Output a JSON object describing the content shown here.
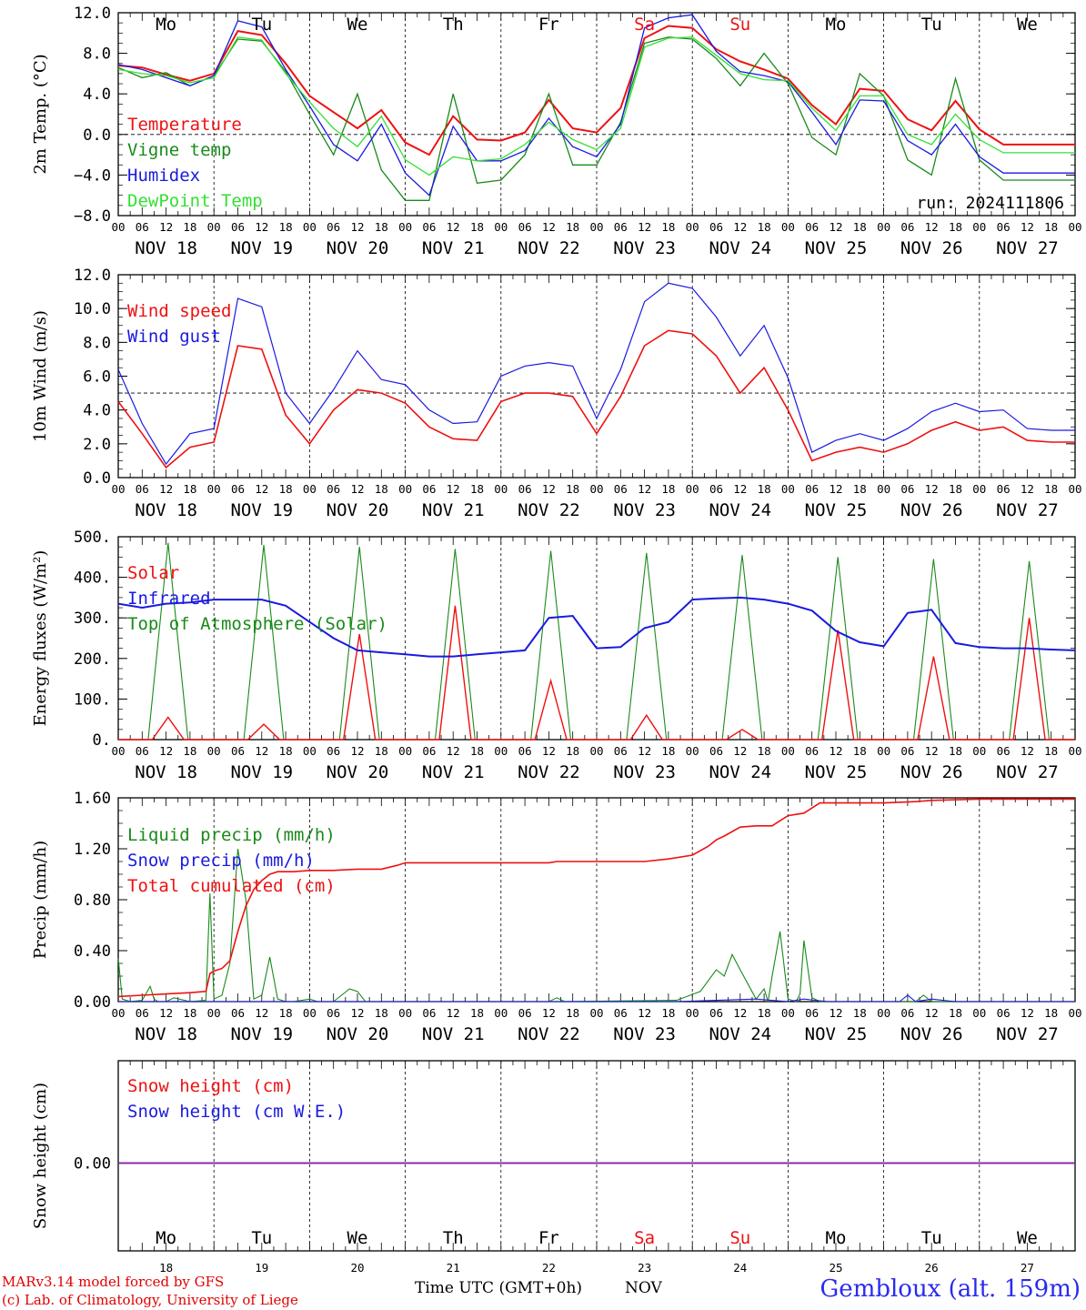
{
  "days": [
    "18",
    "19",
    "20",
    "21",
    "22",
    "23",
    "24",
    "25",
    "26",
    "27"
  ],
  "day_names": [
    "Mo",
    "Tu",
    "We",
    "Th",
    "Fr",
    "Sa",
    "Su",
    "Mo",
    "Tu",
    "We"
  ],
  "weekend_days": [
    5,
    6
  ],
  "date_labels": [
    "NOV 18",
    "NOV 19",
    "NOV 20",
    "NOV 21",
    "NOV 22",
    "NOV 23",
    "NOV 24",
    "NOV 25",
    "NOV 26",
    "NOV 27"
  ],
  "hour_ticks": [
    "00",
    "06",
    "12",
    "18"
  ],
  "hour_ticks_end": "00",
  "colors": {
    "red": "#ee1111",
    "green": "#1a8a1a",
    "blue": "#1a1ae0",
    "light_green": "#33e033",
    "purple": "#8822aa"
  },
  "footer": {
    "credit_1": "MARv3.14 model forced by GFS",
    "credit_2": "(c) Lab. of Climatology, University of Liege",
    "time_label": "Time UTC (GMT+0h)",
    "month": "NOV",
    "station": "Gembloux (alt. 159m)"
  },
  "chart_data": [
    {
      "type": "line",
      "ylabel": "2m Temp. (°C)",
      "ylim": [
        -8,
        12
      ],
      "yticks": [
        "12.0",
        "8.0",
        "4.0",
        "0.0",
        "−4.0",
        "−8.0"
      ],
      "ytick_values": [
        12,
        8,
        4,
        0,
        -4,
        -8
      ],
      "reference_line": 0,
      "annotation": "run: 2024111806",
      "x_unit": "hours since NOV 18 00 UTC",
      "series": [
        {
          "name": "Temperature",
          "color": "#ee1111",
          "width": 2,
          "x": [
            0,
            6,
            12,
            18,
            24,
            30,
            36,
            42,
            48,
            54,
            60,
            66,
            72,
            78,
            84,
            90,
            96,
            102,
            108,
            114,
            120,
            126,
            132,
            138,
            144,
            150,
            156,
            162,
            168,
            174,
            180,
            186,
            192,
            198,
            204,
            210,
            216,
            222,
            228,
            234,
            240
          ],
          "y": [
            6.8,
            6.6,
            5.9,
            5.3,
            6.0,
            10.2,
            9.8,
            7.0,
            3.8,
            2.2,
            0.6,
            2.4,
            -0.8,
            -2.0,
            1.8,
            -0.5,
            -0.6,
            0.2,
            3.4,
            0.6,
            0.2,
            2.6,
            9.5,
            10.7,
            10.5,
            8.4,
            7.2,
            6.4,
            5.5,
            2.9,
            1.0,
            4.5,
            4.3,
            1.5,
            0.4,
            3.3,
            0.5,
            -1.0,
            -1.0,
            -1.0,
            -1.0
          ]
        },
        {
          "name": "Vigne temp",
          "color": "#1a8a1a",
          "width": 1.3,
          "x": [
            0,
            6,
            12,
            18,
            24,
            30,
            36,
            42,
            48,
            54,
            60,
            66,
            72,
            78,
            84,
            90,
            96,
            102,
            108,
            114,
            120,
            126,
            132,
            138,
            144,
            150,
            156,
            162,
            168,
            174,
            180,
            186,
            192,
            198,
            204,
            210,
            216,
            222,
            228,
            234,
            240
          ],
          "y": [
            6.6,
            5.6,
            6.1,
            4.8,
            5.8,
            9.4,
            9.2,
            6.2,
            2.0,
            -2.0,
            4.0,
            -3.5,
            -6.5,
            -6.5,
            4.0,
            -4.8,
            -4.5,
            -2.0,
            4.0,
            -3.0,
            -3.0,
            1.2,
            9.0,
            9.6,
            9.4,
            7.5,
            4.8,
            8.0,
            5.0,
            -0.3,
            -2.0,
            6.0,
            3.8,
            -2.5,
            -4.0,
            5.5,
            -2.5,
            -4.5,
            -4.5,
            -4.5,
            -4.5
          ]
        },
        {
          "name": "Humidex",
          "color": "#1a1ae0",
          "width": 1.3,
          "x": [
            0,
            6,
            12,
            18,
            24,
            30,
            36,
            42,
            48,
            54,
            60,
            66,
            72,
            78,
            84,
            90,
            96,
            102,
            108,
            114,
            120,
            126,
            132,
            138,
            144,
            150,
            156,
            162,
            168,
            174,
            180,
            186,
            192,
            198,
            204,
            210,
            216,
            222,
            228,
            234,
            240
          ],
          "y": [
            6.9,
            6.4,
            5.6,
            4.8,
            5.8,
            11.2,
            10.6,
            6.4,
            2.8,
            -1.0,
            -2.6,
            1.0,
            -3.8,
            -6.0,
            0.8,
            -2.6,
            -2.6,
            -1.6,
            1.6,
            -1.2,
            -2.2,
            1.0,
            10.5,
            11.5,
            11.8,
            8.2,
            6.2,
            5.8,
            5.2,
            2.2,
            -1.0,
            3.4,
            3.3,
            -0.6,
            -2.0,
            1.0,
            -2.2,
            -3.8,
            -3.8,
            -3.8,
            -3.8
          ]
        },
        {
          "name": "DewPoint Temp",
          "color": "#33e033",
          "width": 1.3,
          "x": [
            0,
            6,
            12,
            18,
            24,
            30,
            36,
            42,
            48,
            54,
            60,
            66,
            72,
            78,
            84,
            90,
            96,
            102,
            108,
            114,
            120,
            126,
            132,
            138,
            144,
            150,
            156,
            162,
            168,
            174,
            180,
            186,
            192,
            198,
            204,
            210,
            216,
            222,
            228,
            234,
            240
          ],
          "y": [
            6.4,
            6.0,
            5.8,
            5.1,
            5.6,
            9.6,
            9.3,
            6.0,
            3.2,
            0.6,
            -1.2,
            1.8,
            -2.5,
            -4.0,
            -2.2,
            -2.6,
            -2.4,
            -1.0,
            1.2,
            -0.5,
            -1.5,
            0.6,
            8.6,
            9.5,
            9.6,
            7.8,
            6.0,
            5.4,
            5.3,
            2.6,
            0.4,
            3.8,
            3.8,
            0.0,
            -1.0,
            2.0,
            -0.5,
            -1.8,
            -1.8,
            -1.8,
            -1.8
          ]
        }
      ]
    },
    {
      "type": "line",
      "ylabel": "10m Wind (m/s)",
      "ylim": [
        0,
        12
      ],
      "yticks": [
        "12.0",
        "10.0",
        "8.0",
        "6.0",
        "4.0",
        "2.0",
        "0.0"
      ],
      "ytick_values": [
        12,
        10,
        8,
        6,
        4,
        2,
        0
      ],
      "reference_line": 5,
      "x_unit": "hours since NOV 18 00 UTC",
      "series": [
        {
          "name": "Wind speed",
          "color": "#ee1111",
          "width": 1.6,
          "x": [
            0,
            6,
            12,
            18,
            24,
            30,
            36,
            42,
            48,
            54,
            60,
            66,
            72,
            78,
            84,
            90,
            96,
            102,
            108,
            114,
            120,
            126,
            132,
            138,
            144,
            150,
            156,
            162,
            168,
            174,
            180,
            186,
            192,
            198,
            204,
            210,
            216,
            222,
            228,
            234,
            240
          ],
          "y": [
            4.5,
            2.6,
            0.6,
            1.8,
            2.1,
            7.8,
            7.6,
            3.7,
            2.0,
            4.0,
            5.2,
            5.0,
            4.4,
            3.0,
            2.3,
            2.2,
            4.5,
            5.0,
            5.0,
            4.8,
            2.6,
            4.8,
            7.8,
            8.7,
            8.5,
            7.2,
            5.0,
            6.5,
            4.0,
            1.0,
            1.5,
            1.8,
            1.5,
            2.0,
            2.8,
            3.3,
            2.8,
            3.0,
            2.2,
            2.1,
            2.1
          ]
        },
        {
          "name": "Wind gust",
          "color": "#1a1ae0",
          "width": 1.2,
          "x": [
            0,
            6,
            12,
            18,
            24,
            30,
            36,
            42,
            48,
            54,
            60,
            66,
            72,
            78,
            84,
            90,
            96,
            102,
            108,
            114,
            120,
            126,
            132,
            138,
            144,
            150,
            156,
            162,
            168,
            174,
            180,
            186,
            192,
            198,
            204,
            210,
            216,
            222,
            228,
            234,
            240
          ],
          "y": [
            6.4,
            3.2,
            0.8,
            2.6,
            2.9,
            10.6,
            10.1,
            5.0,
            3.2,
            5.2,
            7.5,
            5.8,
            5.5,
            4.0,
            3.2,
            3.3,
            6.0,
            6.6,
            6.8,
            6.6,
            3.5,
            6.4,
            10.4,
            11.5,
            11.2,
            9.5,
            7.2,
            9.0,
            5.9,
            1.5,
            2.2,
            2.6,
            2.2,
            2.9,
            3.9,
            4.4,
            3.9,
            4.0,
            2.9,
            2.8,
            2.8
          ]
        }
      ]
    },
    {
      "type": "line",
      "ylabel": "Energy fluxes (W/m²)",
      "ylim": [
        0,
        500
      ],
      "yticks": [
        "500.",
        "400.",
        "300.",
        "200.",
        "100.",
        "0."
      ],
      "ytick_values": [
        500,
        400,
        300,
        200,
        100,
        0
      ],
      "x_unit": "hours since NOV 18 00 UTC",
      "toa_peaks": [
        485,
        480,
        475,
        470,
        465,
        460,
        455,
        450,
        445,
        440
      ],
      "solar_peaks": [
        55,
        38,
        260,
        330,
        145,
        60,
        25,
        270,
        205,
        300
      ],
      "series": [
        {
          "name": "Solar",
          "color": "#ee1111",
          "width": 1.4
        },
        {
          "name": "Infrared",
          "color": "#1a1ae0",
          "width": 2,
          "x": [
            0,
            6,
            12,
            18,
            24,
            30,
            36,
            42,
            48,
            54,
            60,
            66,
            72,
            78,
            84,
            90,
            96,
            102,
            108,
            114,
            120,
            126,
            132,
            138,
            144,
            150,
            156,
            162,
            168,
            174,
            180,
            186,
            192,
            198,
            204,
            210,
            216,
            222,
            228,
            234,
            240
          ],
          "y": [
            335,
            325,
            335,
            338,
            345,
            345,
            345,
            330,
            290,
            250,
            220,
            215,
            210,
            205,
            205,
            210,
            215,
            220,
            300,
            305,
            225,
            228,
            275,
            290,
            345,
            348,
            350,
            345,
            335,
            318,
            268,
            240,
            230,
            312,
            320,
            238,
            228,
            225,
            225,
            222,
            220
          ]
        },
        {
          "name": "Top of Atmosphere (Solar)",
          "color": "#1a8a1a",
          "width": 1.1
        }
      ]
    },
    {
      "type": "line",
      "ylabel": "Precip (mm/h)",
      "ylim": [
        0,
        1.6
      ],
      "yticks": [
        "1.60",
        "1.20",
        "0.80",
        "0.40",
        "0.00"
      ],
      "ytick_values": [
        1.6,
        1.2,
        0.8,
        0.4,
        0
      ],
      "x_unit": "hours since NOV 18 00 UTC",
      "series": [
        {
          "name": "Liquid precip (mm/h)",
          "color": "#1a8a1a",
          "width": 1.1,
          "x": [
            0,
            1,
            3,
            6,
            8,
            9,
            10,
            12,
            14,
            18,
            22,
            23,
            24,
            26,
            28,
            30,
            32,
            34,
            36,
            38,
            40,
            42,
            44,
            48,
            50,
            54,
            56,
            58,
            60,
            62,
            66,
            72,
            96,
            108,
            110,
            112,
            140,
            146,
            150,
            152,
            154,
            156,
            160,
            162,
            163,
            164,
            166,
            168,
            170,
            171,
            172,
            174,
            176,
            200,
            202,
            204,
            220,
            240
          ],
          "y": [
            0.34,
            0.02,
            0.0,
            0.01,
            0.12,
            0.02,
            0.0,
            0.0,
            0.03,
            0.0,
            0.01,
            0.85,
            0.02,
            0.05,
            0.3,
            1.2,
            0.8,
            0.02,
            0.05,
            0.35,
            0.02,
            0.0,
            0.0,
            0.02,
            0.0,
            0.0,
            0.05,
            0.1,
            0.08,
            0.0,
            0.0,
            0.0,
            0.0,
            0.0,
            0.03,
            0.0,
            0.01,
            0.08,
            0.25,
            0.2,
            0.37,
            0.25,
            0.02,
            0.1,
            0.0,
            0.2,
            0.55,
            0.02,
            0.0,
            0.06,
            0.48,
            0.03,
            0.0,
            0.0,
            0.05,
            0.0,
            0.0,
            0.0
          ]
        },
        {
          "name": "Snow precip (mm/h)",
          "color": "#1a1ae0",
          "width": 1.1,
          "x": [
            0,
            140,
            150,
            160,
            168,
            172,
            178,
            190,
            196,
            198,
            200,
            204,
            210,
            240
          ],
          "y": [
            0,
            0,
            0.01,
            0.02,
            0,
            0.02,
            0,
            0,
            0,
            0.05,
            0,
            0.02,
            0,
            0
          ]
        },
        {
          "name": "Total cumulated (cm)",
          "color": "#ee1111",
          "width": 1.6,
          "x": [
            0,
            6,
            12,
            18,
            22,
            23,
            24,
            26,
            28,
            30,
            32,
            34,
            36,
            38,
            40,
            44,
            48,
            54,
            60,
            66,
            70,
            72,
            84,
            96,
            108,
            110,
            120,
            132,
            138,
            144,
            148,
            150,
            152,
            156,
            160,
            162,
            164,
            166,
            168,
            170,
            172,
            174,
            176,
            192,
            200,
            204,
            216,
            240
          ],
          "y": [
            0.04,
            0.05,
            0.06,
            0.07,
            0.08,
            0.22,
            0.24,
            0.26,
            0.32,
            0.55,
            0.75,
            0.88,
            0.95,
            1.0,
            1.02,
            1.02,
            1.03,
            1.03,
            1.04,
            1.04,
            1.07,
            1.09,
            1.09,
            1.09,
            1.09,
            1.1,
            1.1,
            1.1,
            1.12,
            1.15,
            1.22,
            1.27,
            1.3,
            1.37,
            1.38,
            1.38,
            1.38,
            1.42,
            1.46,
            1.47,
            1.48,
            1.52,
            1.56,
            1.56,
            1.57,
            1.58,
            1.59,
            1.59
          ]
        }
      ]
    },
    {
      "type": "line",
      "ylabel": "Snow height (cm)",
      "yticks": [
        "0.00"
      ],
      "ytick_values": [
        0
      ],
      "x_unit": "hours since NOV 18 00 UTC",
      "series": [
        {
          "name": "Snow height (cm)",
          "color": "#ee1111",
          "width": 1.5,
          "x": [
            0,
            240
          ],
          "y": [
            0,
            0
          ]
        },
        {
          "name": "Snow height (cm W.E.)",
          "color": "#1a1ae0",
          "width": 1.5,
          "x": [
            0,
            240
          ],
          "y": [
            0,
            0
          ]
        }
      ]
    }
  ]
}
